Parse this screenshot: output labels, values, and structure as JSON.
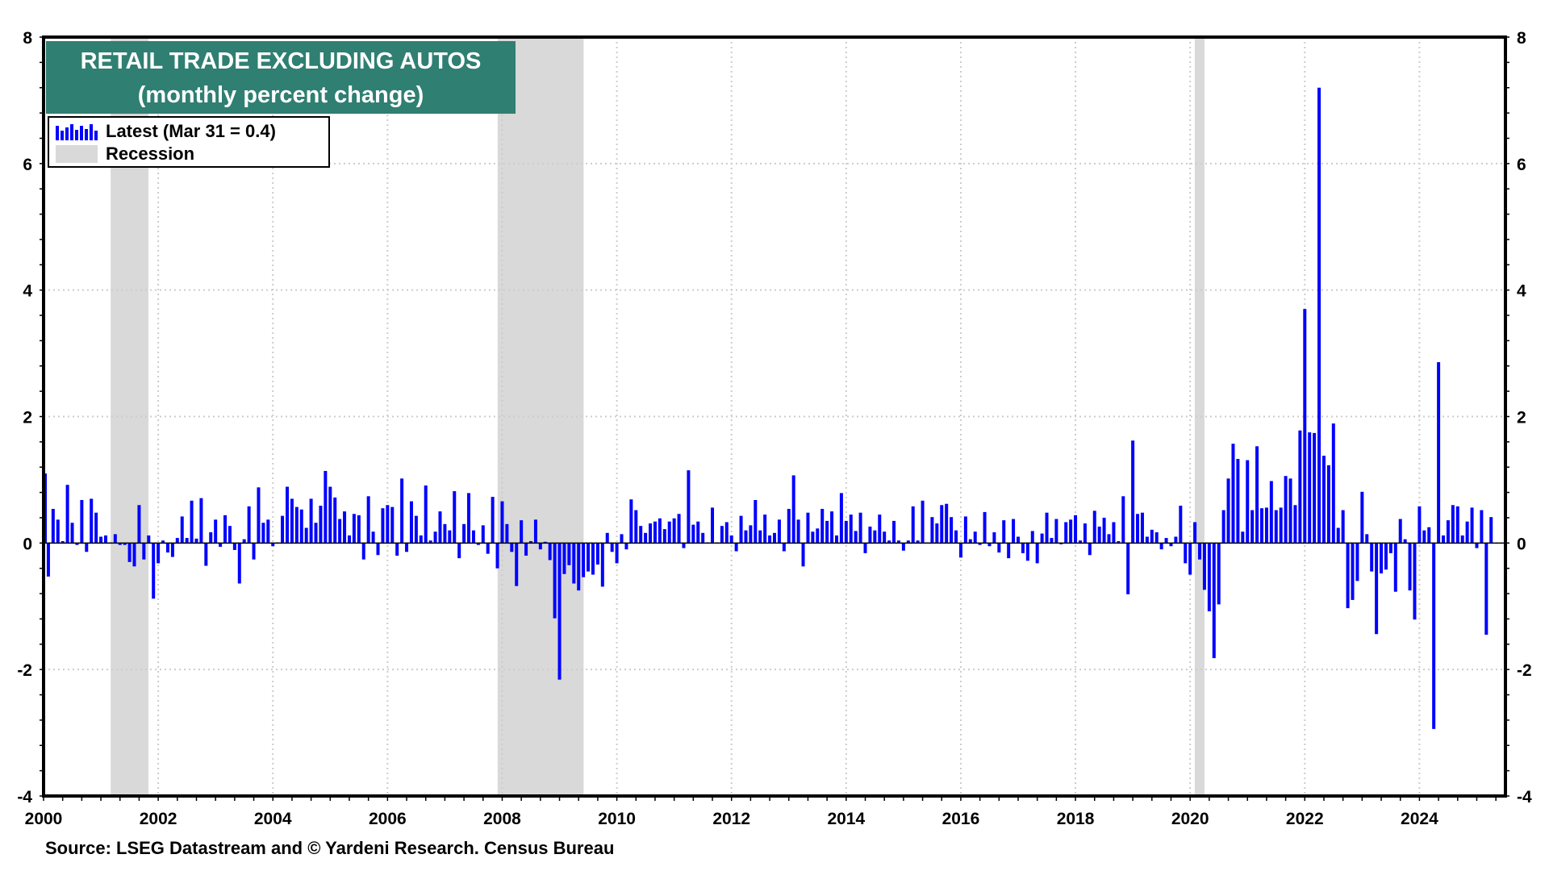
{
  "chart_data": {
    "type": "bar",
    "title": "RETAIL TRADE EXCLUDING AUTOS",
    "subtitle": "(monthly percent change)",
    "legend": [
      {
        "label": "Latest (Mar 31 = 0.4)",
        "kind": "bars",
        "color": "#0000FF"
      },
      {
        "label": "Recession",
        "kind": "band",
        "color": "#D9D9D9"
      }
    ],
    "legend_placement": "top-left",
    "source": "Source: LSEG Datastream and © Yardeni Research. Census Bureau",
    "series_start": "1999-12",
    "frequency": "monthly",
    "xlim": [
      2000,
      2025.5
    ],
    "ylim": [
      -4,
      8
    ],
    "x_ticks": [
      "2000",
      "2002",
      "2004",
      "2006",
      "2008",
      "2010",
      "2012",
      "2014",
      "2016",
      "2018",
      "2020",
      "2022",
      "2024"
    ],
    "y_ticks": [
      "-4",
      "-2",
      "0",
      "2",
      "4",
      "6",
      "8"
    ],
    "grid": true,
    "recessions": [
      [
        2001.17,
        2001.83
      ],
      [
        2007.92,
        2009.42
      ],
      [
        2020.08,
        2020.25
      ]
    ],
    "values": [
      1.1,
      -0.53,
      0.54,
      0.37,
      0.03,
      0.92,
      0.32,
      -0.03,
      0.68,
      -0.14,
      0.7,
      0.48,
      0.1,
      0.12,
      0.01,
      0.14,
      -0.03,
      -0.03,
      -0.3,
      -0.37,
      0.6,
      -0.26,
      0.12,
      -0.88,
      -0.32,
      0.04,
      -0.15,
      -0.22,
      0.08,
      0.42,
      0.08,
      0.67,
      0.07,
      0.71,
      -0.36,
      0.17,
      0.37,
      -0.06,
      0.44,
      0.27,
      -0.11,
      -0.64,
      0.06,
      0.58,
      -0.26,
      0.88,
      0.32,
      0.37,
      -0.05,
      0.01,
      0.43,
      0.89,
      0.7,
      0.57,
      0.53,
      0.24,
      0.7,
      0.32,
      0.59,
      1.14,
      0.89,
      0.72,
      0.38,
      0.5,
      0.12,
      0.46,
      0.44,
      -0.26,
      0.74,
      0.18,
      -0.19,
      0.55,
      0.6,
      0.57,
      -0.2,
      1.02,
      -0.14,
      0.66,
      0.43,
      0.12,
      0.91,
      0.04,
      0.18,
      0.5,
      0.3,
      0.2,
      0.82,
      -0.24,
      0.3,
      0.79,
      0.2,
      -0.03,
      0.28,
      -0.17,
      0.73,
      -0.4,
      0.66,
      0.3,
      -0.14,
      -0.68,
      0.36,
      -0.2,
      0.03,
      0.37,
      -0.1,
      0.02,
      -0.27,
      -1.19,
      -2.16,
      -0.49,
      -0.35,
      -0.64,
      -0.75,
      -0.54,
      -0.45,
      -0.5,
      -0.34,
      -0.69,
      0.16,
      -0.14,
      -0.32,
      0.14,
      -0.1,
      0.69,
      0.52,
      0.27,
      0.16,
      0.31,
      0.34,
      0.39,
      0.22,
      0.34,
      0.39,
      0.46,
      -0.08,
      1.15,
      0.29,
      0.34,
      0.16,
      0.01,
      0.56,
      0.01,
      0.27,
      0.33,
      0.12,
      -0.13,
      0.43,
      0.2,
      0.28,
      0.68,
      0.2,
      0.45,
      0.12,
      0.16,
      0.37,
      -0.13,
      0.54,
      1.07,
      0.37,
      -0.37,
      0.48,
      0.18,
      0.23,
      0.54,
      0.35,
      0.5,
      0.12,
      0.79,
      0.35,
      0.45,
      0.19,
      0.48,
      -0.16,
      0.26,
      0.2,
      0.45,
      0.18,
      0.04,
      0.35,
      0.04,
      -0.12,
      0.04,
      0.58,
      0.04,
      0.67,
      0.01,
      0.41,
      0.31,
      0.6,
      0.62,
      0.41,
      0.2,
      -0.23,
      0.42,
      0.06,
      0.18,
      -0.03,
      0.49,
      -0.05,
      0.17,
      -0.15,
      0.36,
      -0.24,
      0.38,
      0.1,
      -0.16,
      -0.28,
      0.19,
      -0.32,
      0.15,
      0.48,
      0.08,
      0.38,
      -0.02,
      0.33,
      0.37,
      0.44,
      0.04,
      0.31,
      -0.19,
      0.51,
      0.26,
      0.4,
      0.14,
      0.33,
      0.03,
      0.74,
      -0.81,
      1.62,
      0.46,
      0.48,
      0.1,
      0.21,
      0.17,
      -0.1,
      0.08,
      -0.05,
      0.1,
      0.59,
      -0.32,
      -0.5,
      0.33,
      -0.26,
      -0.74,
      -1.08,
      -1.82,
      -0.97,
      0.52,
      1.02,
      1.57,
      1.33,
      0.18,
      1.31,
      0.52,
      1.53,
      0.55,
      0.56,
      0.98,
      0.52,
      0.56,
      1.06,
      1.02,
      0.6,
      1.78,
      3.7,
      1.75,
      1.74,
      7.2,
      1.38,
      1.23,
      1.89,
      0.24,
      0.52,
      -1.03,
      -0.9,
      -0.6,
      0.81,
      0.14,
      -0.45,
      -1.44,
      -0.48,
      -0.42,
      -0.16,
      -0.77,
      0.38,
      0.06,
      -0.75,
      -1.21,
      0.58,
      0.2,
      0.25,
      -2.94,
      2.86,
      0.12,
      0.36,
      0.6,
      0.58,
      0.12,
      0.34,
      0.56,
      -0.08,
      0.52,
      -1.45,
      0.41
    ]
  },
  "colors": {
    "bar": "#0000FF",
    "recession": "#D9D9D9",
    "title_bg": "#2F7F72",
    "grid": "#CCCCCC"
  }
}
